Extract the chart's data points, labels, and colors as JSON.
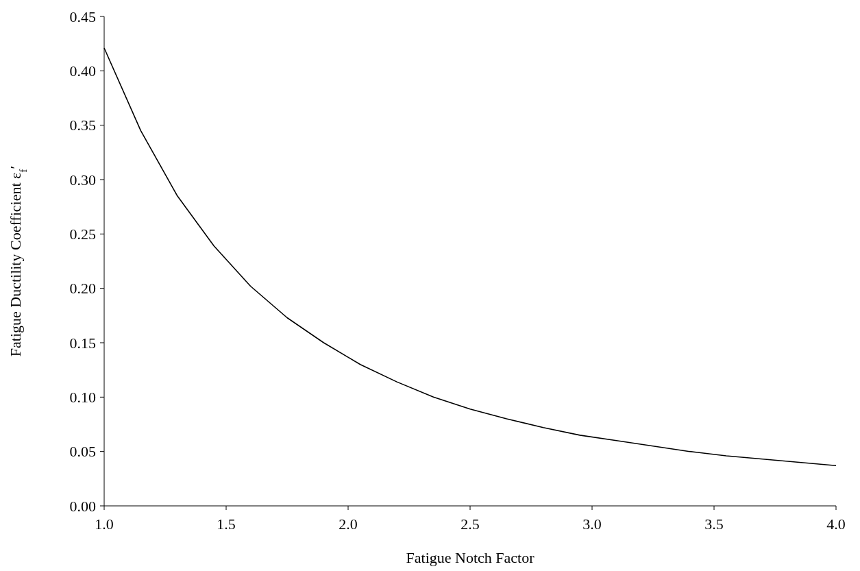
{
  "chart_data": {
    "type": "line",
    "xlabel": "Fatigue Notch Factor",
    "ylabel": "Fatigue Ductility Coefficient ε$_{f}$′",
    "x": [
      1.0,
      1.15,
      1.3,
      1.45,
      1.6,
      1.75,
      1.9,
      2.05,
      2.2,
      2.35,
      2.5,
      2.65,
      2.8,
      2.95,
      3.1,
      3.25,
      3.4,
      3.55,
      3.7,
      3.85,
      4.0
    ],
    "series": [
      {
        "color": "#000000",
        "values": [
          0.421,
          0.345,
          0.285,
          0.239,
          0.202,
          0.173,
          0.15,
          0.13,
          0.114,
          0.1,
          0.089,
          0.08,
          0.072,
          0.065,
          0.06,
          0.055,
          0.05,
          0.046,
          0.043,
          0.04,
          0.037
        ]
      }
    ],
    "xlim": [
      1.0,
      4.0
    ],
    "xticks": [
      {
        "value": 1,
        "label": "1.0"
      },
      {
        "value": 1.5,
        "label": "1.5"
      },
      {
        "value": 2,
        "label": "2.0"
      },
      {
        "value": 2.5,
        "label": "2.5"
      },
      {
        "value": 3,
        "label": "3.0"
      },
      {
        "value": 3.5,
        "label": "3.5"
      },
      {
        "value": 4,
        "label": "4.0"
      }
    ],
    "ylim": [
      0,
      0.45
    ],
    "yticks": [
      {
        "value": 0,
        "label": "0.00"
      },
      {
        "value": 0.05,
        "label": "0.05"
      },
      {
        "value": 0.1,
        "label": "0.10"
      },
      {
        "value": 0.15,
        "label": "0.15"
      },
      {
        "value": 0.2,
        "label": "0.20"
      },
      {
        "value": 0.25,
        "label": "0.25"
      },
      {
        "value": 0.3,
        "label": "0.30"
      },
      {
        "value": 0.35,
        "label": "0.35"
      },
      {
        "value": 0.4,
        "label": "0.40"
      },
      {
        "value": 0.45,
        "label": "0.45"
      }
    ],
    "grid": false,
    "marker": "none",
    "line_style": "solid"
  }
}
